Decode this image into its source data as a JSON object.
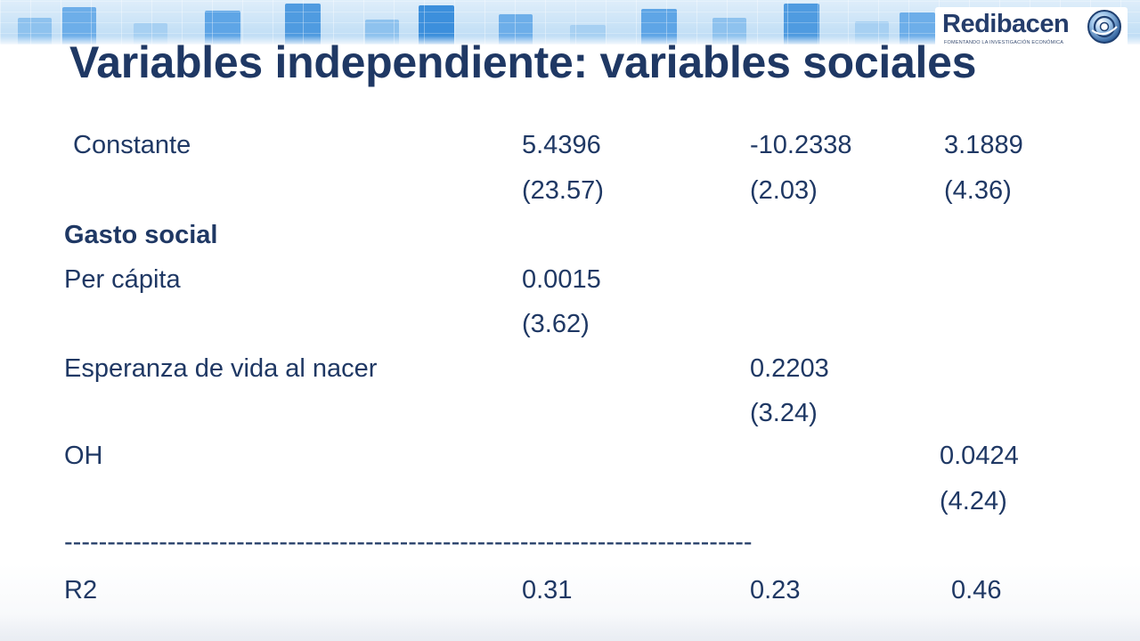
{
  "slide": {
    "title": "Variables independiente: variables sociales"
  },
  "logo": {
    "name": "Redibacen",
    "tagline": "FOMENTANDO LA INVESTIGACIÓN ECONÓMICA",
    "icon": "globe-swirl-icon"
  },
  "table": {
    "constante": {
      "label": "Constante",
      "col1": "5.4396",
      "col2": "-10.2338",
      "col3": "3.1889",
      "se1": "(23.57)",
      "se2": "(2.03)",
      "se3": "(4.36)"
    },
    "gasto_social": {
      "label": "Gasto social"
    },
    "per_capita": {
      "label": "Per cápita",
      "col1": "0.0015",
      "se1": "(3.62)"
    },
    "esperanza": {
      "label": "Esperanza de vida al nacer",
      "col2": "0.2203",
      "se2": "(3.24)"
    },
    "oh": {
      "label": "OH",
      "col3": "0.0424",
      "se3": "(4.24)"
    },
    "divider": "--------------------------------------------------------------------------------",
    "r2": {
      "label": "R2",
      "col1": "0.31",
      "col2": "0.23",
      "col3": "0.46"
    }
  },
  "colors": {
    "text": "#1f3864",
    "banner_light": "#dfeefa",
    "banner_blue": "#4f9be0"
  }
}
